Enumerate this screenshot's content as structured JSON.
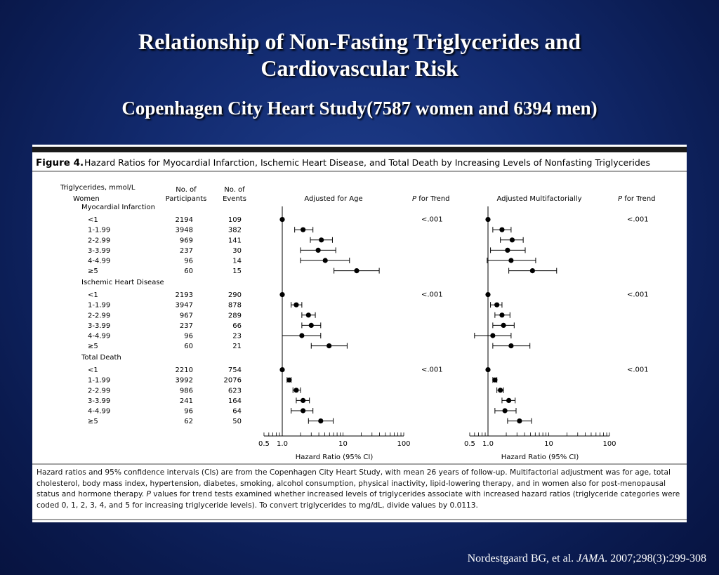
{
  "slide": {
    "title_line1": "Relationship of Non-Fasting Triglycerides and",
    "title_line2": "Cardiovascular Risk",
    "subtitle": "Copenhagen City Heart Study(7587 women and 6394 men)"
  },
  "figure": {
    "label": "Figure 4.",
    "title": "Hazard Ratios for Myocardial Infarction, Ischemic Heart Disease, and Total Death by Increasing Levels of Nonfasting Triglycerides",
    "headers": {
      "trig": "Triglycerides, mmol/L",
      "women": "Women",
      "participants_1": "No. of",
      "participants_2": "Participants",
      "events_1": "No. of",
      "events_2": "Events",
      "age": "Adjusted for Age",
      "multi": "Adjusted Multifactorially",
      "p_italic": "P",
      "p_trend": " for Trend"
    },
    "axis_label": "Hazard Ratio (95% CI)"
  },
  "chart_data": {
    "type": "forest",
    "xscale": "log",
    "xlim": [
      0.5,
      100
    ],
    "xticks": [
      "0.5",
      "1.0",
      "10",
      "100"
    ],
    "reference": 1,
    "sections": [
      {
        "name": "Myocardial Infarction",
        "p_age": "<.001",
        "p_multi": "<.001",
        "rows": [
          {
            "level": "<1",
            "participants": "2194",
            "events": "109",
            "age": [
              1,
              1,
              1
            ],
            "multi": [
              1,
              1,
              1
            ]
          },
          {
            "level": "1-1.99",
            "participants": "3948",
            "events": "382",
            "age": [
              2.2,
              1.6,
              3.2
            ],
            "multi": [
              1.7,
              1.2,
              2.4
            ]
          },
          {
            "level": "2-2.99",
            "participants": "969",
            "events": "141",
            "age": [
              4.4,
              2.9,
              6.7
            ],
            "multi": [
              2.5,
              1.6,
              3.8
            ]
          },
          {
            "level": "3-3.99",
            "participants": "237",
            "events": "30",
            "age": [
              3.9,
              2.0,
              7.6
            ],
            "multi": [
              2.1,
              1.1,
              4.1
            ]
          },
          {
            "level": "4-4.99",
            "participants": "96",
            "events": "14",
            "age": [
              5.1,
              2.0,
              12.8
            ],
            "multi": [
              2.4,
              0.97,
              6.1
            ]
          },
          {
            "level": "≥5",
            "participants": "60",
            "events": "15",
            "age": [
              16.8,
              7.1,
              39.5
            ],
            "multi": [
              5.4,
              2.2,
              13.5
            ]
          }
        ]
      },
      {
        "name": "Ischemic Heart Disease",
        "p_age": "<.001",
        "p_multi": "<.001",
        "rows": [
          {
            "level": "<1",
            "participants": "2193",
            "events": "290",
            "age": [
              1,
              1,
              1
            ],
            "multi": [
              1,
              1,
              1
            ]
          },
          {
            "level": "1-1.99",
            "participants": "3947",
            "events": "878",
            "age": [
              1.7,
              1.4,
              2.1
            ],
            "multi": [
              1.4,
              1.1,
              1.7
            ]
          },
          {
            "level": "2-2.99",
            "participants": "967",
            "events": "289",
            "age": [
              2.7,
              2.1,
              3.5
            ],
            "multi": [
              1.7,
              1.3,
              2.3
            ]
          },
          {
            "level": "3-3.99",
            "participants": "237",
            "events": "66",
            "age": [
              3.0,
              2.1,
              4.3
            ],
            "multi": [
              1.8,
              1.2,
              2.7
            ]
          },
          {
            "level": "4-4.99",
            "participants": "96",
            "events": "23",
            "age": [
              2.1,
              1.0,
              4.3
            ],
            "multi": [
              1.2,
              0.6,
              2.4
            ]
          },
          {
            "level": "≥5",
            "participants": "60",
            "events": "21",
            "age": [
              5.9,
              3.0,
              11.7
            ],
            "multi": [
              2.4,
              1.2,
              4.9
            ]
          }
        ]
      },
      {
        "name": "Total Death",
        "p_age": "<.001",
        "p_multi": "<.001",
        "rows": [
          {
            "level": "<1",
            "participants": "2210",
            "events": "754",
            "age": [
              1,
              1,
              1
            ],
            "multi": [
              1,
              1,
              1
            ]
          },
          {
            "level": "1-1.99",
            "participants": "3992",
            "events": "2076",
            "age": [
              1.3,
              1.2,
              1.4
            ],
            "multi": [
              1.3,
              1.2,
              1.4
            ]
          },
          {
            "level": "2-2.99",
            "participants": "986",
            "events": "623",
            "age": [
              1.7,
              1.5,
              2.0
            ],
            "multi": [
              1.6,
              1.4,
              1.8
            ]
          },
          {
            "level": "3-3.99",
            "participants": "241",
            "events": "164",
            "age": [
              2.2,
              1.7,
              2.8
            ],
            "multi": [
              2.2,
              1.7,
              2.8
            ]
          },
          {
            "level": "4-4.99",
            "participants": "96",
            "events": "64",
            "age": [
              2.2,
              1.4,
              3.2
            ],
            "multi": [
              1.9,
              1.3,
              2.9
            ]
          },
          {
            "level": "≥5",
            "participants": "62",
            "events": "50",
            "age": [
              4.3,
              2.7,
              6.9
            ],
            "multi": [
              3.3,
              2.1,
              5.2
            ]
          }
        ]
      }
    ]
  },
  "caption": {
    "part1": "Hazard ratios and 95% confidence intervals (CIs) are from the Copenhagen City Heart Study, with mean 26 years of follow-up. Multifactorial adjustment was for age, total cholesterol, body mass index, hypertension, diabetes, smoking, alcohol consumption, physical inactivity, lipid-lowering therapy, and in women also for post-menopausal status and hormone therapy.",
    "p_italic": "P",
    "part2": "values for trend tests examined whether increased levels of triglycerides associate with increased hazard ratios (triglyceride categories were coded 0, 1, 2, 3, 4, and 5 for increasing triglyceride levels). To convert triglycerides to mg/dL, divide values by 0.0113."
  },
  "citation": {
    "prefix": "Nordestgaard BG, et al. ",
    "journal": "JAMA",
    "suffix": ". 2007;298(3):299-308"
  }
}
